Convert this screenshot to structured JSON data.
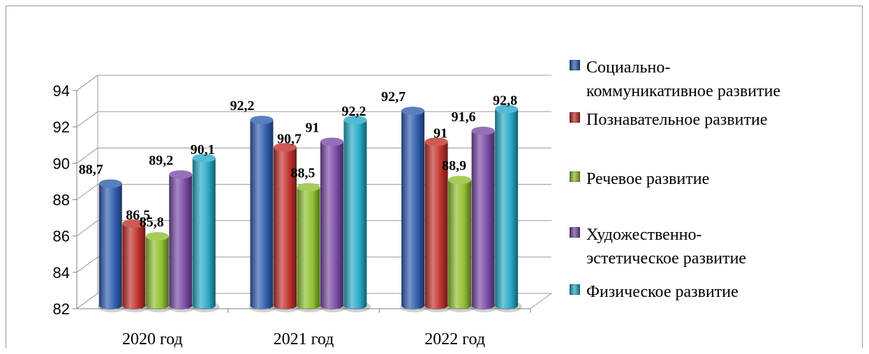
{
  "chart_data": {
    "type": "bar",
    "categories": [
      "2020 год",
      "2021 год",
      "2022 год"
    ],
    "series": [
      {
        "name": "Социально-коммуникативное развитие",
        "values": [
          88.7,
          92.2,
          92.7
        ],
        "labels": [
          "88,7",
          "92,2",
          "92,7"
        ],
        "color": "#2f5fb0"
      },
      {
        "name": "Познавательное развитие",
        "values": [
          86.5,
          90.7,
          91.0
        ],
        "labels": [
          "86,5",
          "90,7",
          "91"
        ],
        "color": "#c0312b"
      },
      {
        "name": "Речевое развитие",
        "values": [
          85.8,
          88.5,
          88.9
        ],
        "labels": [
          "85,8",
          "88,5",
          "88,9"
        ],
        "color": "#8fbf2f"
      },
      {
        "name": "Художественно-эстетическое развитие",
        "values": [
          89.2,
          91.0,
          91.6
        ],
        "labels": [
          "89,2",
          "91",
          "91,6"
        ],
        "color": "#7a4ba6"
      },
      {
        "name": "Физическое развитие",
        "values": [
          90.1,
          92.2,
          92.8
        ],
        "labels": [
          "90,1",
          "92,2",
          "92,8"
        ],
        "color": "#27a9c7"
      }
    ],
    "y_ticks": [
      "82",
      "84",
      "86",
      "88",
      "90",
      "92",
      "94"
    ],
    "ylim": [
      82,
      94
    ],
    "grid": true,
    "legend_position": "right",
    "legend_lines": [
      [
        "Социально-",
        "коммуникативное развитие"
      ],
      [
        "Познавательное развитие"
      ],
      [
        "Речевое развитие"
      ],
      [
        "Художественно-",
        "эстетическое развитие"
      ],
      [
        "Физическое развитие"
      ]
    ]
  }
}
